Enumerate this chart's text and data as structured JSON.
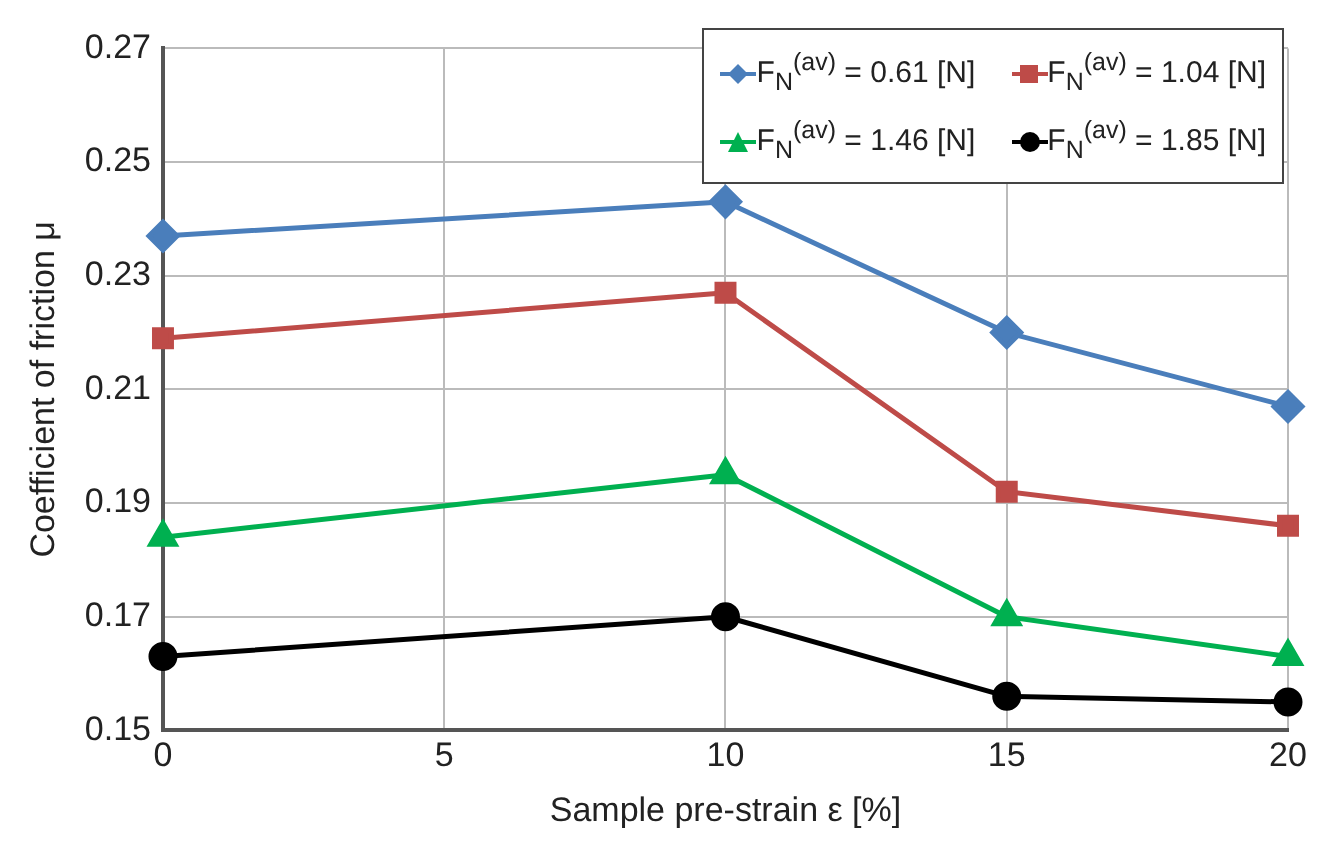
{
  "chart_data": {
    "type": "line",
    "xlabel": "Sample pre-strain ε [%]",
    "ylabel": "Coefficient of friction μ",
    "x": [
      0,
      10,
      15,
      20
    ],
    "xlim": [
      0,
      20
    ],
    "xticks": [
      0,
      5,
      10,
      15,
      20
    ],
    "ylim": [
      0.15,
      0.27
    ],
    "yticks": [
      0.15,
      0.17,
      0.19,
      0.21,
      0.23,
      0.25,
      0.27
    ],
    "grid": true,
    "legend": "top right",
    "line_style": "solid",
    "series": [
      {
        "name": "F$_{N}$$^{(av)}$ = 0.61 [N]",
        "color": "#4a7ebb",
        "marker": "diamond",
        "values": [
          0.237,
          0.243,
          0.22,
          0.207
        ]
      },
      {
        "name": "F$_{N}$$^{(av)}$ = 1.04 [N]",
        "color": "#be4b48",
        "marker": "square",
        "values": [
          0.219,
          0.227,
          0.192,
          0.186
        ]
      },
      {
        "name": "F$_{N}$$^{(av)}$ = 1.46 [N]",
        "color": "#00b050",
        "marker": "triangle",
        "values": [
          0.184,
          0.195,
          0.17,
          0.163
        ]
      },
      {
        "name": "F$_{N}$$^{(av)}$ = 1.85 [N]",
        "color": "#000000",
        "marker": "circle",
        "values": [
          0.163,
          0.17,
          0.156,
          0.155
        ]
      }
    ]
  }
}
